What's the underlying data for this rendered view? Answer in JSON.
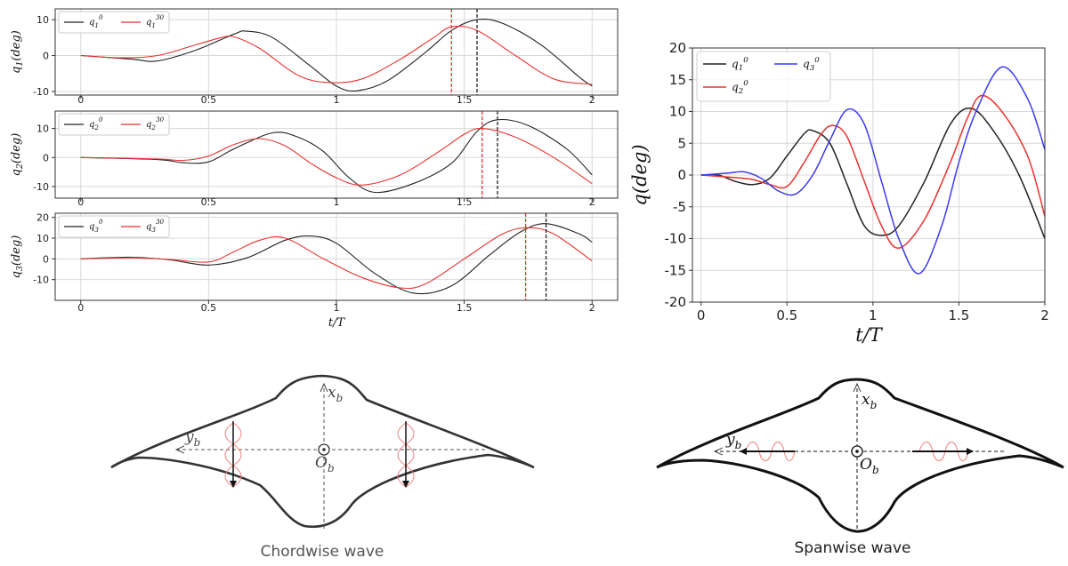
{
  "colors": {
    "q0": "#222222",
    "q30": "#e8322e",
    "q3": "#3a3af0",
    "grid": "#d8d8d8",
    "wave": "#f08080"
  },
  "chart_data": [
    {
      "type": "line",
      "panel": "q1",
      "xlabel": "t/T",
      "ylabel": "q_1(deg)",
      "xlim": [
        -0.1,
        2.1
      ],
      "ylim": [
        -11,
        13
      ],
      "xticks": [
        "0",
        "0.5",
        "1",
        "1.5",
        "2"
      ],
      "yticks": [
        "-10",
        "0",
        "10"
      ],
      "grid": true,
      "legend": "top-left",
      "series": [
        {
          "name": "q_1^0",
          "color": "#222222",
          "x": [
            0,
            0.2,
            0.3,
            0.45,
            0.6,
            0.65,
            0.75,
            0.9,
            1.0,
            1.08,
            1.2,
            1.35,
            1.45,
            1.55,
            1.65,
            1.8,
            1.95,
            2.0
          ],
          "y": [
            0,
            -1,
            -1.5,
            1.5,
            6,
            6.8,
            5,
            -3,
            -8.5,
            -9.8,
            -7,
            1,
            7,
            10,
            9,
            3,
            -6,
            -8.5
          ]
        },
        {
          "name": "q_1^30",
          "color": "#e8322e",
          "x": [
            0,
            0.15,
            0.3,
            0.45,
            0.55,
            0.6,
            0.7,
            0.85,
            0.97,
            1.1,
            1.25,
            1.38,
            1.45,
            1.55,
            1.7,
            1.85,
            2.0
          ],
          "y": [
            0,
            -0.6,
            0,
            3,
            5,
            5.2,
            2,
            -5.5,
            -7.5,
            -6.5,
            -1,
            5,
            8,
            7,
            0,
            -6.5,
            -8
          ]
        }
      ],
      "vlines": [
        {
          "x": 1.45,
          "color": "#e8322e"
        },
        {
          "x": 1.55,
          "color": "#222222"
        }
      ]
    },
    {
      "type": "line",
      "panel": "q2",
      "xlabel": "t/T",
      "ylabel": "q_2(deg)",
      "xlim": [
        -0.1,
        2.1
      ],
      "ylim": [
        -14,
        16
      ],
      "xticks": [
        "0",
        "0.5",
        "1",
        "1.5",
        "2"
      ],
      "yticks": [
        "-10",
        "0",
        "10"
      ],
      "grid": true,
      "legend": "top-left",
      "series": [
        {
          "name": "q_2^0",
          "color": "#222222",
          "x": [
            0,
            0.3,
            0.4,
            0.5,
            0.6,
            0.75,
            0.85,
            0.95,
            1.05,
            1.15,
            1.3,
            1.45,
            1.55,
            1.63,
            1.75,
            1.9,
            2.0
          ],
          "y": [
            0,
            -0.7,
            -1.8,
            -1.5,
            3,
            8.5,
            7,
            2,
            -7,
            -12,
            -9,
            -2,
            9,
            13,
            11,
            3,
            -6
          ]
        },
        {
          "name": "q_2^30",
          "color": "#e8322e",
          "x": [
            0,
            0.3,
            0.4,
            0.5,
            0.6,
            0.7,
            0.8,
            0.9,
            1.0,
            1.1,
            1.25,
            1.4,
            1.5,
            1.57,
            1.7,
            1.85,
            2.0
          ],
          "y": [
            0,
            -0.5,
            -1,
            0.5,
            4.5,
            6.5,
            4,
            -2,
            -7,
            -9.5,
            -6,
            2,
            8,
            10,
            7,
            0,
            -9
          ]
        }
      ],
      "vlines": [
        {
          "x": 1.57,
          "color": "#e8322e"
        },
        {
          "x": 1.63,
          "color": "#222222"
        }
      ]
    },
    {
      "type": "line",
      "panel": "q3",
      "xlabel": "t/T",
      "ylabel": "q_3(deg)",
      "xlim": [
        -0.1,
        2.1
      ],
      "ylim": [
        -20,
        22
      ],
      "xticks": [
        "0",
        "0.5",
        "1",
        "1.5",
        "2"
      ],
      "yticks": [
        "-10",
        "0",
        "10",
        "20"
      ],
      "grid": true,
      "legend": "top-left",
      "series": [
        {
          "name": "q_3^0",
          "color": "#222222",
          "x": [
            0,
            0.2,
            0.35,
            0.5,
            0.65,
            0.8,
            0.9,
            1.0,
            1.15,
            1.3,
            1.45,
            1.6,
            1.72,
            1.82,
            1.95,
            2.0
          ],
          "y": [
            0,
            0.8,
            -0.5,
            -3,
            0.5,
            9,
            11,
            7.5,
            -7,
            -16.5,
            -13,
            2,
            13,
            17,
            12,
            8
          ]
        },
        {
          "name": "q_3^30",
          "color": "#e8322e",
          "x": [
            0,
            0.2,
            0.35,
            0.5,
            0.6,
            0.7,
            0.8,
            0.95,
            1.1,
            1.25,
            1.35,
            1.5,
            1.65,
            1.75,
            1.85,
            2.0
          ],
          "y": [
            0,
            0.5,
            -0.3,
            -1.5,
            3.5,
            9,
            10,
            0,
            -9,
            -14,
            -12,
            0,
            12,
            15,
            12,
            -1
          ]
        }
      ],
      "vlines": [
        {
          "x": 1.74,
          "color": "#e8322e"
        },
        {
          "x": 1.82,
          "color": "#222222"
        }
      ]
    },
    {
      "type": "line",
      "panel": "q-right",
      "xlabel": "t/T",
      "ylabel": "q(deg)",
      "xlim": [
        -0.05,
        2.0
      ],
      "ylim": [
        -20,
        20
      ],
      "xticks": [
        "0",
        "0.5",
        "1",
        "1.5",
        "2"
      ],
      "yticks": [
        "-20",
        "-15",
        "-10",
        "-5",
        "0",
        "5",
        "10",
        "15",
        "20"
      ],
      "grid": true,
      "legend": "top-left",
      "series": [
        {
          "name": "q_1^0",
          "color": "#222222",
          "x": [
            0,
            0.1,
            0.2,
            0.3,
            0.4,
            0.5,
            0.6,
            0.65,
            0.75,
            0.85,
            0.95,
            1.05,
            1.15,
            1.3,
            1.45,
            1.57,
            1.7,
            1.85,
            2.0
          ],
          "y": [
            0,
            0,
            -1,
            -1.5,
            -0.5,
            3,
            6.5,
            7,
            5,
            -1.5,
            -8,
            -9.5,
            -8,
            -1,
            8,
            10.5,
            7,
            0,
            -10
          ]
        },
        {
          "name": "q_2^0",
          "color": "#e8322e",
          "x": [
            0,
            0.2,
            0.3,
            0.4,
            0.5,
            0.6,
            0.7,
            0.77,
            0.85,
            0.95,
            1.05,
            1.15,
            1.3,
            1.45,
            1.55,
            1.63,
            1.75,
            1.9,
            2.0
          ],
          "y": [
            0,
            -0.4,
            -0.7,
            -1.5,
            -1.8,
            2,
            6.5,
            7.8,
            6,
            -1,
            -8,
            -11.5,
            -7,
            2,
            9,
            12.5,
            10,
            3,
            -6.5
          ]
        },
        {
          "name": "q_3^0",
          "color": "#3a3af0",
          "x": [
            0,
            0.15,
            0.25,
            0.35,
            0.45,
            0.55,
            0.65,
            0.75,
            0.85,
            0.95,
            1.05,
            1.15,
            1.27,
            1.4,
            1.5,
            1.6,
            1.75,
            1.9,
            2.0
          ],
          "y": [
            0,
            0.3,
            0.5,
            -0.5,
            -2.5,
            -3,
            0,
            5.5,
            10.3,
            8,
            -1,
            -10,
            -15.5,
            -8,
            2,
            10,
            17,
            12,
            4
          ]
        }
      ]
    }
  ],
  "diagrams": {
    "chordwise": {
      "caption": "Chordwise wave",
      "x_axis": "x",
      "x_sub": "b",
      "y_axis": "y",
      "y_sub": "b",
      "origin": "O",
      "origin_sub": "b"
    },
    "spanwise": {
      "caption": "Spanwise wave",
      "x_axis": "x",
      "x_sub": "b",
      "y_axis": "y",
      "y_sub": "b",
      "origin": "O",
      "origin_sub": "b"
    }
  }
}
